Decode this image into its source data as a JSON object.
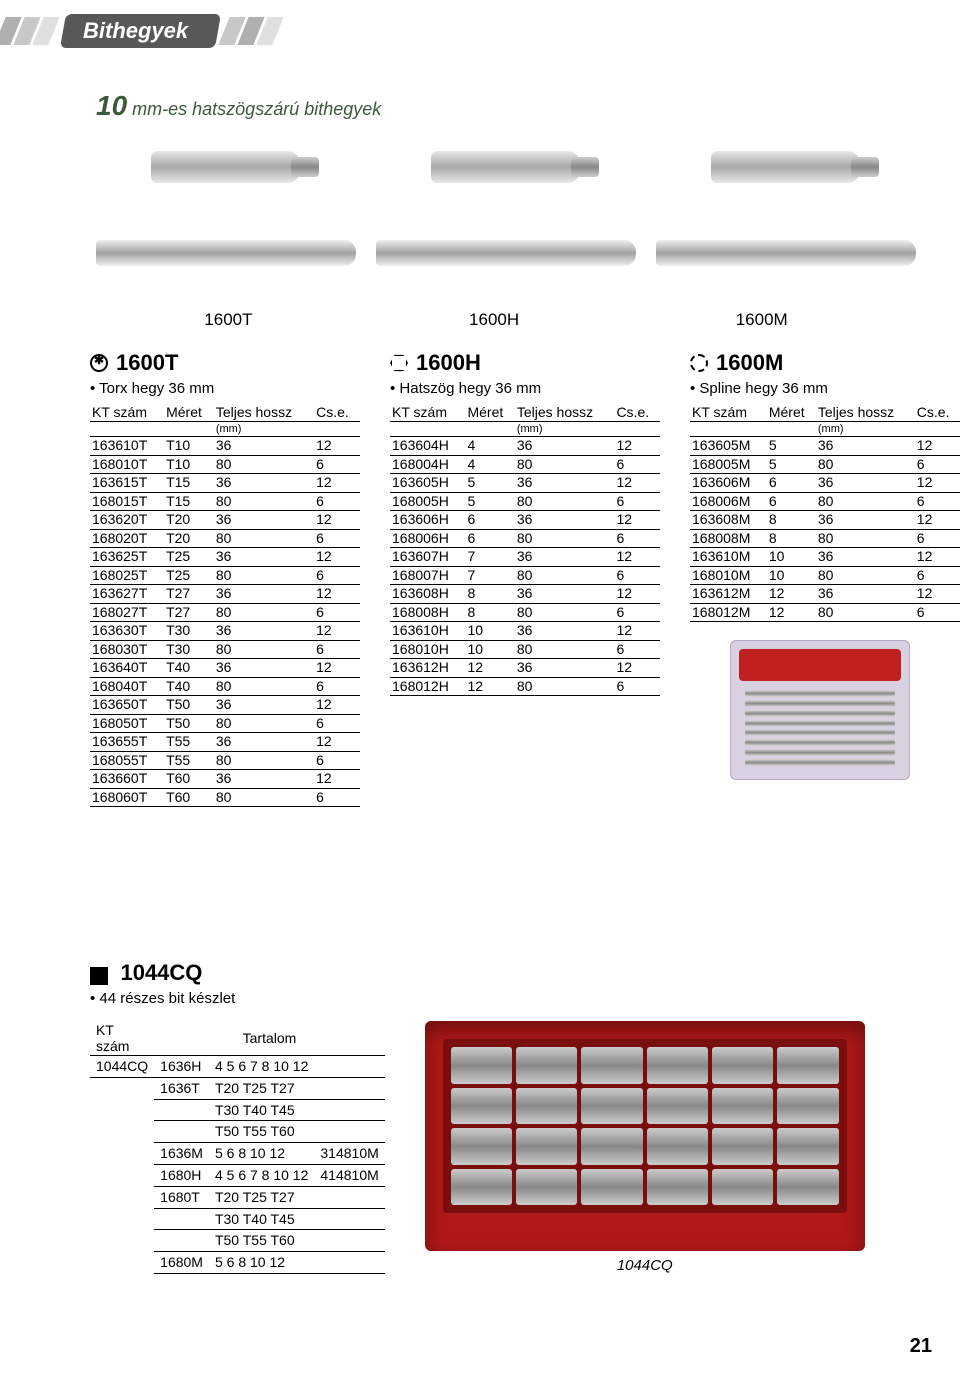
{
  "page_title": "Bithegyek",
  "section_heading_big": "10",
  "section_heading_rest": " mm-es hatszögszárú bithegyek",
  "code_labels": [
    "1600T",
    "1600H",
    "1600M"
  ],
  "columns": [
    {
      "code": "1600T",
      "desc": "Torx hegy 36 mm",
      "headers": [
        "KT szám",
        "Méret",
        "Teljes hossz",
        "Cs.e."
      ],
      "mm": "(mm)",
      "rows": [
        [
          "163610T",
          "T10",
          "36",
          "12"
        ],
        [
          "168010T",
          "T10",
          "80",
          "6"
        ],
        [
          "163615T",
          "T15",
          "36",
          "12"
        ],
        [
          "168015T",
          "T15",
          "80",
          "6"
        ],
        [
          "163620T",
          "T20",
          "36",
          "12"
        ],
        [
          "168020T",
          "T20",
          "80",
          "6"
        ],
        [
          "163625T",
          "T25",
          "36",
          "12"
        ],
        [
          "168025T",
          "T25",
          "80",
          "6"
        ],
        [
          "163627T",
          "T27",
          "36",
          "12"
        ],
        [
          "168027T",
          "T27",
          "80",
          "6"
        ],
        [
          "163630T",
          "T30",
          "36",
          "12"
        ],
        [
          "168030T",
          "T30",
          "80",
          "6"
        ],
        [
          "163640T",
          "T40",
          "36",
          "12"
        ],
        [
          "168040T",
          "T40",
          "80",
          "6"
        ],
        [
          "163650T",
          "T50",
          "36",
          "12"
        ],
        [
          "168050T",
          "T50",
          "80",
          "6"
        ],
        [
          "163655T",
          "T55",
          "36",
          "12"
        ],
        [
          "168055T",
          "T55",
          "80",
          "6"
        ],
        [
          "163660T",
          "T60",
          "36",
          "12"
        ],
        [
          "168060T",
          "T60",
          "80",
          "6"
        ]
      ]
    },
    {
      "code": "1600H",
      "desc": "Hatszög hegy 36 mm",
      "headers": [
        "KT szám",
        "Méret",
        "Teljes hossz",
        "Cs.e."
      ],
      "mm": "(mm)",
      "rows": [
        [
          "163604H",
          "4",
          "36",
          "12"
        ],
        [
          "168004H",
          "4",
          "80",
          "6"
        ],
        [
          "163605H",
          "5",
          "36",
          "12"
        ],
        [
          "168005H",
          "5",
          "80",
          "6"
        ],
        [
          "163606H",
          "6",
          "36",
          "12"
        ],
        [
          "168006H",
          "6",
          "80",
          "6"
        ],
        [
          "163607H",
          "7",
          "36",
          "12"
        ],
        [
          "168007H",
          "7",
          "80",
          "6"
        ],
        [
          "163608H",
          "8",
          "36",
          "12"
        ],
        [
          "168008H",
          "8",
          "80",
          "6"
        ],
        [
          "163610H",
          "10",
          "36",
          "12"
        ],
        [
          "168010H",
          "10",
          "80",
          "6"
        ],
        [
          "163612H",
          "12",
          "36",
          "12"
        ],
        [
          "168012H",
          "12",
          "80",
          "6"
        ]
      ]
    },
    {
      "code": "1600M",
      "desc": "Spline hegy 36 mm",
      "headers": [
        "KT szám",
        "Méret",
        "Teljes hossz",
        "Cs.e."
      ],
      "mm": "(mm)",
      "rows": [
        [
          "163605M",
          "5",
          "36",
          "12"
        ],
        [
          "168005M",
          "5",
          "80",
          "6"
        ],
        [
          "163606M",
          "6",
          "36",
          "12"
        ],
        [
          "168006M",
          "6",
          "80",
          "6"
        ],
        [
          "163608M",
          "8",
          "36",
          "12"
        ],
        [
          "168008M",
          "8",
          "80",
          "6"
        ],
        [
          "163610M",
          "10",
          "36",
          "12"
        ],
        [
          "168010M",
          "10",
          "80",
          "6"
        ],
        [
          "163612M",
          "12",
          "36",
          "12"
        ],
        [
          "168012M",
          "12",
          "80",
          "6"
        ]
      ]
    }
  ],
  "set": {
    "code": "1044CQ",
    "desc": "44 részes bit készlet",
    "th_kt": "KT",
    "th_szam": "szám",
    "th_tartalom": "Tartalom",
    "rows": [
      [
        "1044CQ",
        "1636H",
        "4 5 6 7 8 10 12",
        ""
      ],
      [
        "",
        "1636T",
        "T20 T25 T27",
        ""
      ],
      [
        "",
        "",
        "T30 T40 T45",
        ""
      ],
      [
        "",
        "",
        "T50 T55 T60",
        ""
      ],
      [
        "",
        "1636M",
        "5 6 8 10 12",
        "314810M"
      ],
      [
        "",
        "1680H",
        "4 5 6 7 8 10 12",
        "414810M"
      ],
      [
        "",
        "1680T",
        "T20 T25 T27",
        ""
      ],
      [
        "",
        "",
        "T30 T40 T45",
        ""
      ],
      [
        "",
        "",
        "T50 T55 T60",
        ""
      ],
      [
        "",
        "1680M",
        "5 6 8 10 12",
        ""
      ]
    ],
    "caption": "1044CQ"
  },
  "pagenum": "21",
  "colors": {
    "header_pill": "#585858",
    "red_case": "#b11818",
    "blister": "#d9d0e2"
  }
}
